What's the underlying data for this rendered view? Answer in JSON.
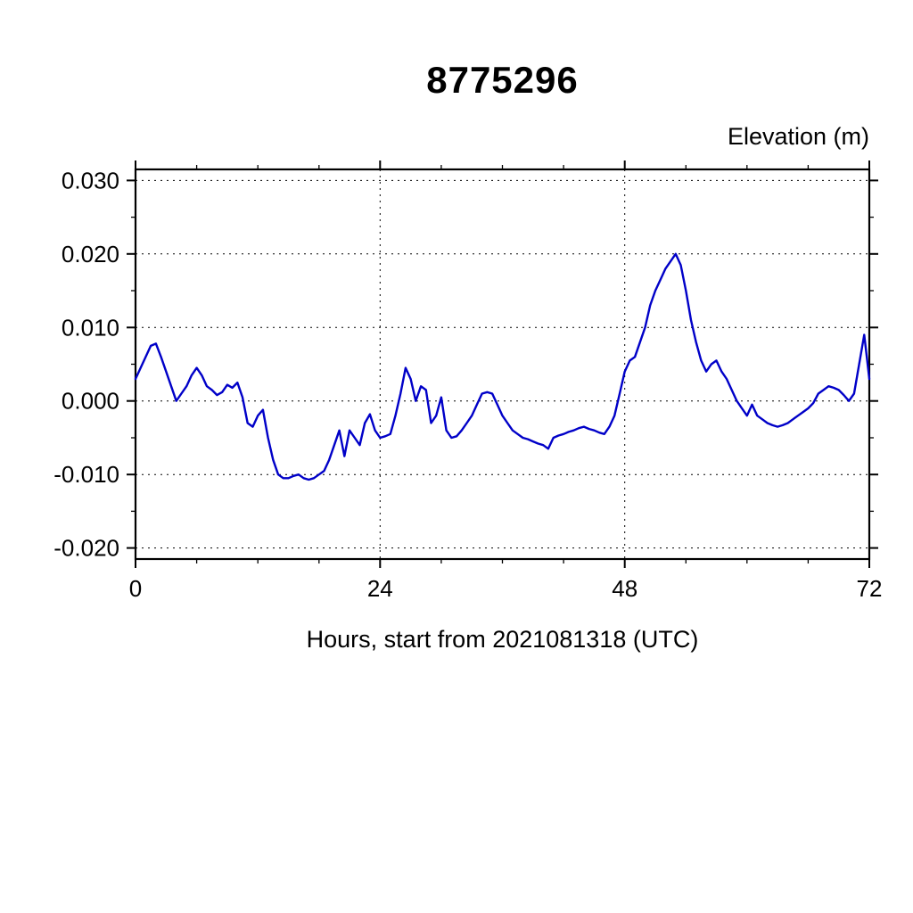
{
  "chart_data": {
    "type": "line",
    "title": "8775296",
    "ylabel": "Elevation (m)",
    "xlabel": "Hours, start from 2021081318 (UTC)",
    "xlim": [
      0,
      72
    ],
    "ylim": [
      -0.0215,
      0.0315
    ],
    "xticks": [
      0,
      24,
      48,
      72
    ],
    "xtick_labels": [
      "0",
      "24",
      "48",
      "72"
    ],
    "x_minor_step": 6,
    "yticks": [
      -0.02,
      -0.01,
      0,
      0.01,
      0.02,
      0.03
    ],
    "ytick_labels": [
      "-0.020",
      "-0.010",
      "0.000",
      "0.010",
      "0.020",
      "0.030"
    ],
    "y_minor_step": 0.005,
    "grid": true,
    "grid_x": [
      24,
      48
    ],
    "legend": "none",
    "line_color": "#0000c8",
    "series": [
      {
        "name": "elevation",
        "x": [
          0,
          0.5,
          1,
          1.5,
          2,
          2.5,
          3,
          3.5,
          4,
          4.5,
          5,
          5.5,
          6,
          6.5,
          7,
          7.5,
          8,
          8.5,
          9,
          9.5,
          10,
          10.5,
          11,
          11.5,
          12,
          12.5,
          13,
          13.5,
          14,
          14.5,
          15,
          15.5,
          16,
          16.5,
          17,
          17.5,
          18,
          18.5,
          19,
          19.5,
          20,
          20.5,
          21,
          21.5,
          22,
          22.5,
          23,
          23.5,
          24,
          24.5,
          25,
          25.5,
          26,
          26.5,
          27,
          27.5,
          28,
          28.5,
          29,
          29.5,
          30,
          30.5,
          31,
          31.5,
          32,
          32.5,
          33,
          33.5,
          34,
          34.5,
          35,
          35.5,
          36,
          36.5,
          37,
          37.5,
          38,
          38.5,
          39,
          39.5,
          40,
          40.5,
          41,
          41.5,
          42,
          42.5,
          43,
          43.5,
          44,
          44.5,
          45,
          45.5,
          46,
          46.5,
          47,
          47.5,
          48,
          48.5,
          49,
          49.5,
          50,
          50.5,
          51,
          51.5,
          52,
          52.5,
          53,
          53.5,
          54,
          54.5,
          55,
          55.5,
          56,
          56.5,
          57,
          57.5,
          58,
          58.5,
          59,
          59.5,
          60,
          60.5,
          61,
          61.5,
          62,
          62.5,
          63,
          63.5,
          64,
          64.5,
          65,
          65.5,
          66,
          66.5,
          67,
          67.5,
          68,
          68.5,
          69,
          69.5,
          70,
          70.5,
          71,
          71.5,
          72
        ],
        "y": [
          0.003,
          0.0045,
          0.006,
          0.0075,
          0.0078,
          0.006,
          0.004,
          0.002,
          0.0,
          0.001,
          0.002,
          0.0035,
          0.0045,
          0.0035,
          0.002,
          0.0015,
          0.0008,
          0.0012,
          0.0022,
          0.0018,
          0.0025,
          0.0005,
          -0.003,
          -0.0035,
          -0.002,
          -0.0012,
          -0.005,
          -0.008,
          -0.01,
          -0.0105,
          -0.0105,
          -0.0102,
          -0.01,
          -0.0105,
          -0.0107,
          -0.0105,
          -0.01,
          -0.0095,
          -0.008,
          -0.006,
          -0.004,
          -0.0075,
          -0.004,
          -0.005,
          -0.006,
          -0.003,
          -0.0018,
          -0.004,
          -0.005,
          -0.0048,
          -0.0045,
          -0.002,
          0.001,
          0.0045,
          0.003,
          0.0,
          0.002,
          0.0015,
          -0.003,
          -0.002,
          0.0005,
          -0.004,
          -0.005,
          -0.0048,
          -0.004,
          -0.003,
          -0.002,
          -0.0005,
          0.001,
          0.0012,
          0.001,
          -0.0005,
          -0.002,
          -0.003,
          -0.004,
          -0.0045,
          -0.005,
          -0.0052,
          -0.0055,
          -0.0058,
          -0.006,
          -0.0065,
          -0.005,
          -0.0047,
          -0.0045,
          -0.0042,
          -0.004,
          -0.0037,
          -0.0035,
          -0.0038,
          -0.004,
          -0.0043,
          -0.0045,
          -0.0035,
          -0.002,
          0.001,
          0.004,
          0.0055,
          0.006,
          0.008,
          0.01,
          0.013,
          0.015,
          0.0165,
          0.018,
          0.019,
          0.02,
          0.0185,
          0.015,
          0.011,
          0.008,
          0.0055,
          0.004,
          0.005,
          0.0055,
          0.004,
          0.003,
          0.0015,
          0.0,
          -0.001,
          -0.002,
          -0.0005,
          -0.002,
          -0.0025,
          -0.003,
          -0.0033,
          -0.0035,
          -0.0033,
          -0.003,
          -0.0025,
          -0.002,
          -0.0015,
          -0.001,
          -0.0003,
          0.001,
          0.0015,
          0.002,
          0.0018,
          0.0015,
          0.0008,
          0.0,
          0.001,
          0.005,
          0.009,
          0.003
        ]
      }
    ]
  }
}
